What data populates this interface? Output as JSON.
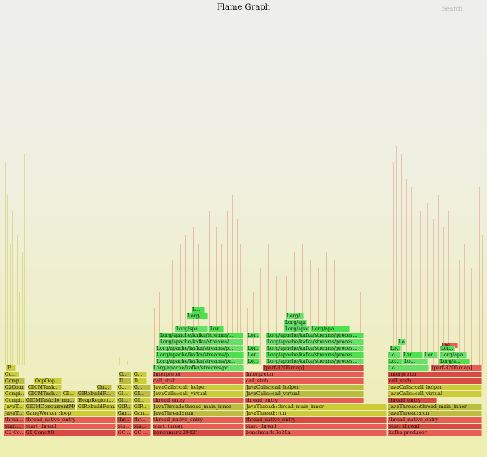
{
  "title": "Flame Graph",
  "search_label": "Search",
  "colors": {
    "red": "#e85d56",
    "red_dark": "#d94a44",
    "orange": "#ec7060",
    "yellow": "#cccc3a",
    "olive": "#bcbc40",
    "green": "#4fdf4f",
    "green_light": "#66e066",
    "green_dark": "#38c838"
  },
  "frames": [
    {
      "label": "C2 Co...",
      "c": "red"
    },
    {
      "label": "GI_Conc#0",
      "c": "red"
    },
    {
      "label": "GC ...",
      "c": "red"
    },
    {
      "label": "GC ...",
      "c": "red"
    },
    {
      "label": "benchmark-2942f",
      "c": "red"
    },
    {
      "label": "benchmark-3e20a",
      "c": "red"
    },
    {
      "label": "kafka-producer",
      "c": "red"
    },
    {
      "label": "start...",
      "c": "red"
    },
    {
      "label": "start_thread",
      "c": "red"
    },
    {
      "label": "sta...",
      "c": "red"
    },
    {
      "label": "sta...",
      "c": "red"
    },
    {
      "label": "start_thread",
      "c": "red"
    },
    {
      "label": "start_thread",
      "c": "red"
    },
    {
      "label": "start_thread",
      "c": "red"
    },
    {
      "label": "threa...",
      "c": "red"
    },
    {
      "label": "thread_native_entry",
      "c": "red"
    },
    {
      "label": "thr...",
      "c": "red"
    },
    {
      "label": "thr...",
      "c": "red"
    },
    {
      "label": "thread_native_entry",
      "c": "red"
    },
    {
      "label": "thread_native_entry",
      "c": "red"
    },
    {
      "label": "thread_native_entry",
      "c": "red"
    },
    {
      "label": "JavaT...",
      "c": "yellow"
    },
    {
      "label": "GangWorker::loop",
      "c": "yellow"
    },
    {
      "label": "Gan...",
      "c": "yellow"
    },
    {
      "label": "Gan...",
      "c": "yellow"
    },
    {
      "label": "JavaThread::run",
      "c": "yellow"
    },
    {
      "label": "JavaThread::run",
      "c": "yellow"
    },
    {
      "label": "JavaThread::run",
      "c": "yellow"
    },
    {
      "label": "JavaT...",
      "c": "yellow"
    },
    {
      "label": "GICMConcurrentMGIGI...",
      "c": "yellow"
    },
    {
      "label": "GIRebuildRem...",
      "c": "yellow"
    },
    {
      "label": "GIP...",
      "c": "yellow"
    },
    {
      "label": "GIP...",
      "c": "yellow"
    },
    {
      "label": "JavaThread::thread_main_inner",
      "c": "yellow"
    },
    {
      "label": "JavaThread::thread_main_inner",
      "c": "yellow"
    },
    {
      "label": "JavaThread::thread_main_inner",
      "c": "yellow"
    },
    {
      "label": "Compi...",
      "c": "yellow"
    },
    {
      "label": "GICMTask:do_ma...",
      "c": "yellow"
    },
    {
      "label": "HeapRegion...",
      "c": "yellow"
    },
    {
      "label": "GI...",
      "c": "yellow"
    },
    {
      "label": "GI...",
      "c": "yellow"
    },
    {
      "label": "thread_entry",
      "c": "red"
    },
    {
      "label": "thread_entry",
      "c": "red"
    },
    {
      "label": "thread_entry",
      "c": "red"
    },
    {
      "label": "Compi...",
      "c": "yellow"
    },
    {
      "label": "GICMTask...",
      "c": "yellow"
    },
    {
      "label": "GI...",
      "c": "yellow"
    },
    {
      "label": "GIRebuildR...",
      "c": "yellow"
    },
    {
      "label": "GI...",
      "c": "yellow"
    },
    {
      "label": "GI...",
      "c": "yellow"
    },
    {
      "label": "JavaCalls::call_virtual",
      "c": "yellow"
    },
    {
      "label": "JavaCalls::call_virtual",
      "c": "yellow"
    },
    {
      "label": "JavaCalls::call_virtual",
      "c": "yellow"
    },
    {
      "label": "C2Com...",
      "c": "yellow"
    },
    {
      "label": "GICMTask...",
      "c": "yellow"
    },
    {
      "label": "Gu...",
      "c": "yellow"
    },
    {
      "label": "G...",
      "c": "yellow"
    },
    {
      "label": "G...",
      "c": "yellow"
    },
    {
      "label": "JavaCalls::call_helper",
      "c": "yellow"
    },
    {
      "label": "JavaCalls::call_helper",
      "c": "yellow"
    },
    {
      "label": "JavaCalls::call_helper",
      "c": "yellow"
    },
    {
      "label": "Comp...",
      "c": "yellow"
    },
    {
      "label": "OopOop...",
      "c": "yellow"
    },
    {
      "label": "D...",
      "c": "yellow"
    },
    {
      "label": "D...",
      "c": "yellow"
    },
    {
      "label": "call_stub",
      "c": "red"
    },
    {
      "label": "call_stub",
      "c": "red"
    },
    {
      "label": "call_stub",
      "c": "red"
    },
    {
      "label": "Co...",
      "c": "yellow"
    },
    {
      "label": "G...",
      "c": "yellow"
    },
    {
      "label": "G...",
      "c": "yellow"
    },
    {
      "label": "Interpreter",
      "c": "red"
    },
    {
      "label": "Interpreter",
      "c": "red"
    },
    {
      "label": "Interpreter",
      "c": "red"
    },
    {
      "label": "P...",
      "c": "yellow"
    },
    {
      "label": "Lorg/apache/kafka/streams/pr...",
      "c": "green"
    },
    {
      "label": "[perf-8206.map]",
      "c": "red"
    },
    {
      "label": "Lo...",
      "c": "green"
    },
    {
      "label": "[perf-8206.map]",
      "c": "red"
    },
    {
      "label": "Lorg/apache/kafka/streams/pr...",
      "c": "green"
    },
    {
      "label": "Lo...",
      "c": "green"
    },
    {
      "label": "Lorg/apache/kafka/streams/proces...",
      "c": "green"
    },
    {
      "label": "Lo...",
      "c": "green"
    },
    {
      "label": "Lo...",
      "c": "green"
    },
    {
      "label": "Lorg/a...",
      "c": "green"
    },
    {
      "label": "Lorg/apa...",
      "c": "green"
    },
    {
      "label": "Lorg/apache/kafka/streams/p...",
      "c": "green"
    },
    {
      "label": "Lor...",
      "c": "green"
    },
    {
      "label": "Lorg/apache/kafka/streams/proces...",
      "c": "green"
    },
    {
      "label": "Lo...",
      "c": "green"
    },
    {
      "label": "Lor...",
      "c": "green"
    },
    {
      "label": "Lor...",
      "c": "green"
    },
    {
      "label": "[pe...",
      "c": "red"
    },
    {
      "label": "Lorg/apache/kafka/streams/p...",
      "c": "green"
    },
    {
      "label": "Lor...",
      "c": "green"
    },
    {
      "label": "Lorg/apache/kafka/streams/proces...",
      "c": "green"
    },
    {
      "label": "Lo...",
      "c": "green"
    },
    {
      "label": "Lorg/apache/kafka/streams/...",
      "c": "green"
    },
    {
      "label": "Lor...",
      "c": "green"
    },
    {
      "label": "Lorg/apache/kafka/streams/proces...",
      "c": "green"
    },
    {
      "label": "Lorg/apache/kafka/streams/...",
      "c": "green"
    },
    {
      "label": "Lor...",
      "c": "green"
    },
    {
      "label": "Lorg/apache/kafka/streams/proces...",
      "c": "green"
    },
    {
      "label": "Lorg/spa...",
      "c": "green"
    },
    {
      "label": "Lor...",
      "c": "green"
    },
    {
      "label": "Lorg/apache...",
      "c": "green"
    },
    {
      "label": "Lorg/apa...",
      "c": "green"
    },
    {
      "label": "Lorg/apa...",
      "c": "green"
    },
    {
      "label": "Lorg/...",
      "c": "green"
    },
    {
      "label": "Lorg/...",
      "c": "green"
    },
    {
      "label": "L...",
      "c": "green"
    },
    {
      "label": "Lo...",
      "c": "green"
    }
  ]
}
